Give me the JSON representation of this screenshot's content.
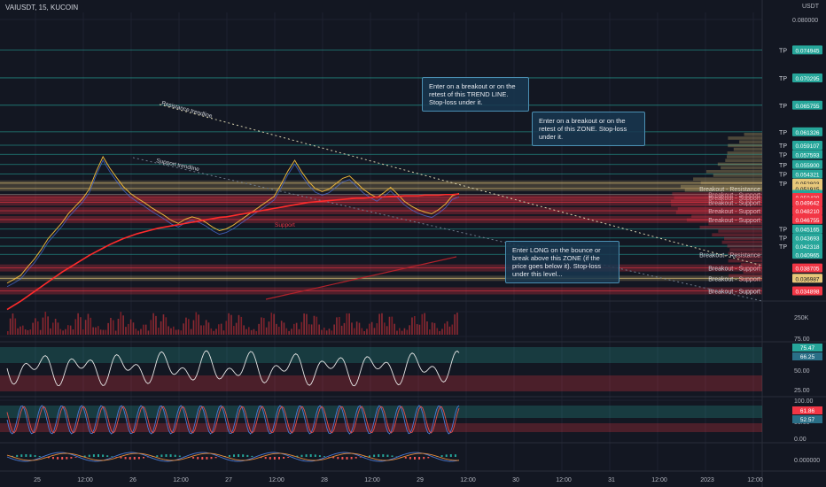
{
  "header": {
    "symbol": "VAIUSDT, 15, KUCOIN",
    "currency": "USDT"
  },
  "notes": [
    "Enter on a breakout or on the retest of this TREND LINE. Stop-loss under it.",
    "Enter on a breakout or on the retest of this ZONE. Stop-loss under it.",
    "Enter LONG on the bounce or break above this ZONE (if the price goes below it). Stop-loss under this level..."
  ],
  "colors": {
    "bg": "#131722",
    "grid": "#1e2230",
    "tp": "#26a69a",
    "support": "#f23645",
    "resistance": "#e8c87a",
    "ma": "#ff2b2b"
  },
  "chart_data": {
    "type": "line",
    "title": "VAIUSDT, 15, KUCOIN",
    "x_ticks": [
      "25",
      "12:00",
      "26",
      "12:00",
      "27",
      "12:00",
      "28",
      "12:00",
      "29",
      "12:00",
      "30",
      "12:00",
      "31",
      "12:00",
      "2023",
      "12:00"
    ],
    "y_ticks": [
      "0.080000"
    ],
    "trendline_labels": [
      "Resistance trendline",
      "Support trendline",
      "Support"
    ],
    "levels": [
      {
        "value": 0.074945,
        "label": "TP",
        "kind": "tp"
      },
      {
        "value": 0.070295,
        "label": "TP",
        "kind": "tp"
      },
      {
        "value": 0.065755,
        "label": "TP",
        "kind": "tp"
      },
      {
        "value": 0.061326,
        "label": "TP",
        "kind": "tp"
      },
      {
        "value": 0.059107,
        "label": "TP",
        "kind": "tp"
      },
      {
        "value": 0.057593,
        "label": "TP",
        "kind": "tp"
      },
      {
        "value": 0.0559,
        "label": "TP",
        "kind": "tp"
      },
      {
        "value": 0.054321,
        "label": "TP",
        "kind": "tp"
      },
      {
        "value": 0.052803,
        "label": "TP",
        "kind": "res"
      },
      {
        "value": 0.051915,
        "label": "Breakout - Resistance",
        "kind": "res"
      },
      {
        "value": 0.050941,
        "label": "Breakout - Support",
        "kind": "tp"
      },
      {
        "value": 0.050428,
        "label": "Breakout - Support",
        "kind": "sup"
      },
      {
        "value": 0.049642,
        "label": "Breakout - Support",
        "kind": "sup"
      },
      {
        "value": 0.04821,
        "label": "Breakout - Support",
        "kind": "sup"
      },
      {
        "value": 0.046755,
        "label": "Breakout - Support",
        "kind": "sup"
      },
      {
        "value": 0.045165,
        "label": "TP",
        "kind": "tp"
      },
      {
        "value": 0.043693,
        "label": "TP",
        "kind": "tp"
      },
      {
        "value": 0.042318,
        "label": "TP",
        "kind": "tp"
      },
      {
        "value": 0.040965,
        "label": "Breakout - Resistance",
        "kind": "tp"
      },
      {
        "value": 0.038705,
        "label": "Breakout - Support",
        "kind": "sup"
      },
      {
        "value": 0.036987,
        "label": "Breakout - Support",
        "kind": "res"
      },
      {
        "value": 0.034898,
        "label": "Breakout - Support",
        "kind": "sup"
      }
    ],
    "price": [
      0.0362,
      0.0368,
      0.0375,
      0.0389,
      0.0402,
      0.0418,
      0.0436,
      0.0449,
      0.0462,
      0.0478,
      0.049,
      0.0502,
      0.0518,
      0.0547,
      0.0572,
      0.0553,
      0.0537,
      0.0522,
      0.0511,
      0.0503,
      0.0496,
      0.0488,
      0.0481,
      0.0474,
      0.0466,
      0.0461,
      0.0468,
      0.0472,
      0.0469,
      0.0463,
      0.0455,
      0.0449,
      0.0452,
      0.0458,
      0.0466,
      0.0474,
      0.0482,
      0.049,
      0.0498,
      0.0506,
      0.0526,
      0.0548,
      0.0566,
      0.0547,
      0.0531,
      0.0519,
      0.0514,
      0.0518,
      0.0527,
      0.0536,
      0.054,
      0.0529,
      0.0518,
      0.051,
      0.0504,
      0.0512,
      0.0521,
      0.051,
      0.0498,
      0.049,
      0.0484,
      0.048,
      0.0477,
      0.0484,
      0.0493,
      0.0507,
      0.0511
    ],
    "ma": [
      0.0318,
      0.0325,
      0.0332,
      0.034,
      0.0348,
      0.0356,
      0.0364,
      0.0372,
      0.038,
      0.0387,
      0.0394,
      0.0401,
      0.0408,
      0.0414,
      0.042,
      0.0426,
      0.0431,
      0.0436,
      0.044,
      0.0444,
      0.0447,
      0.045,
      0.0453,
      0.0455,
      0.0457,
      0.0459,
      0.0461,
      0.0463,
      0.0465,
      0.0467,
      0.0469,
      0.0471,
      0.0472,
      0.0474,
      0.0476,
      0.0478,
      0.048,
      0.0482,
      0.0484,
      0.0486,
      0.0488,
      0.049,
      0.0492,
      0.0494,
      0.0496,
      0.0497,
      0.0498,
      0.0499,
      0.05,
      0.0501,
      0.0502,
      0.0503,
      0.0503,
      0.0504,
      0.0505,
      0.0505,
      0.0506,
      0.0506,
      0.0507,
      0.0507,
      0.0507,
      0.0508,
      0.0508,
      0.0508,
      0.0509,
      0.0509,
      0.051
    ],
    "volume_axis": [
      "250K"
    ],
    "rsi": {
      "current": [
        "75.47",
        "66.25"
      ],
      "ticks": [
        "75.00",
        "50.00",
        "25.00"
      ]
    },
    "stoch": {
      "current": [
        "61.86",
        "52.57"
      ],
      "ticks": [
        "100.00",
        "50.00",
        "0.00"
      ]
    },
    "macd": {
      "ticks": [
        "0.000000"
      ]
    }
  }
}
